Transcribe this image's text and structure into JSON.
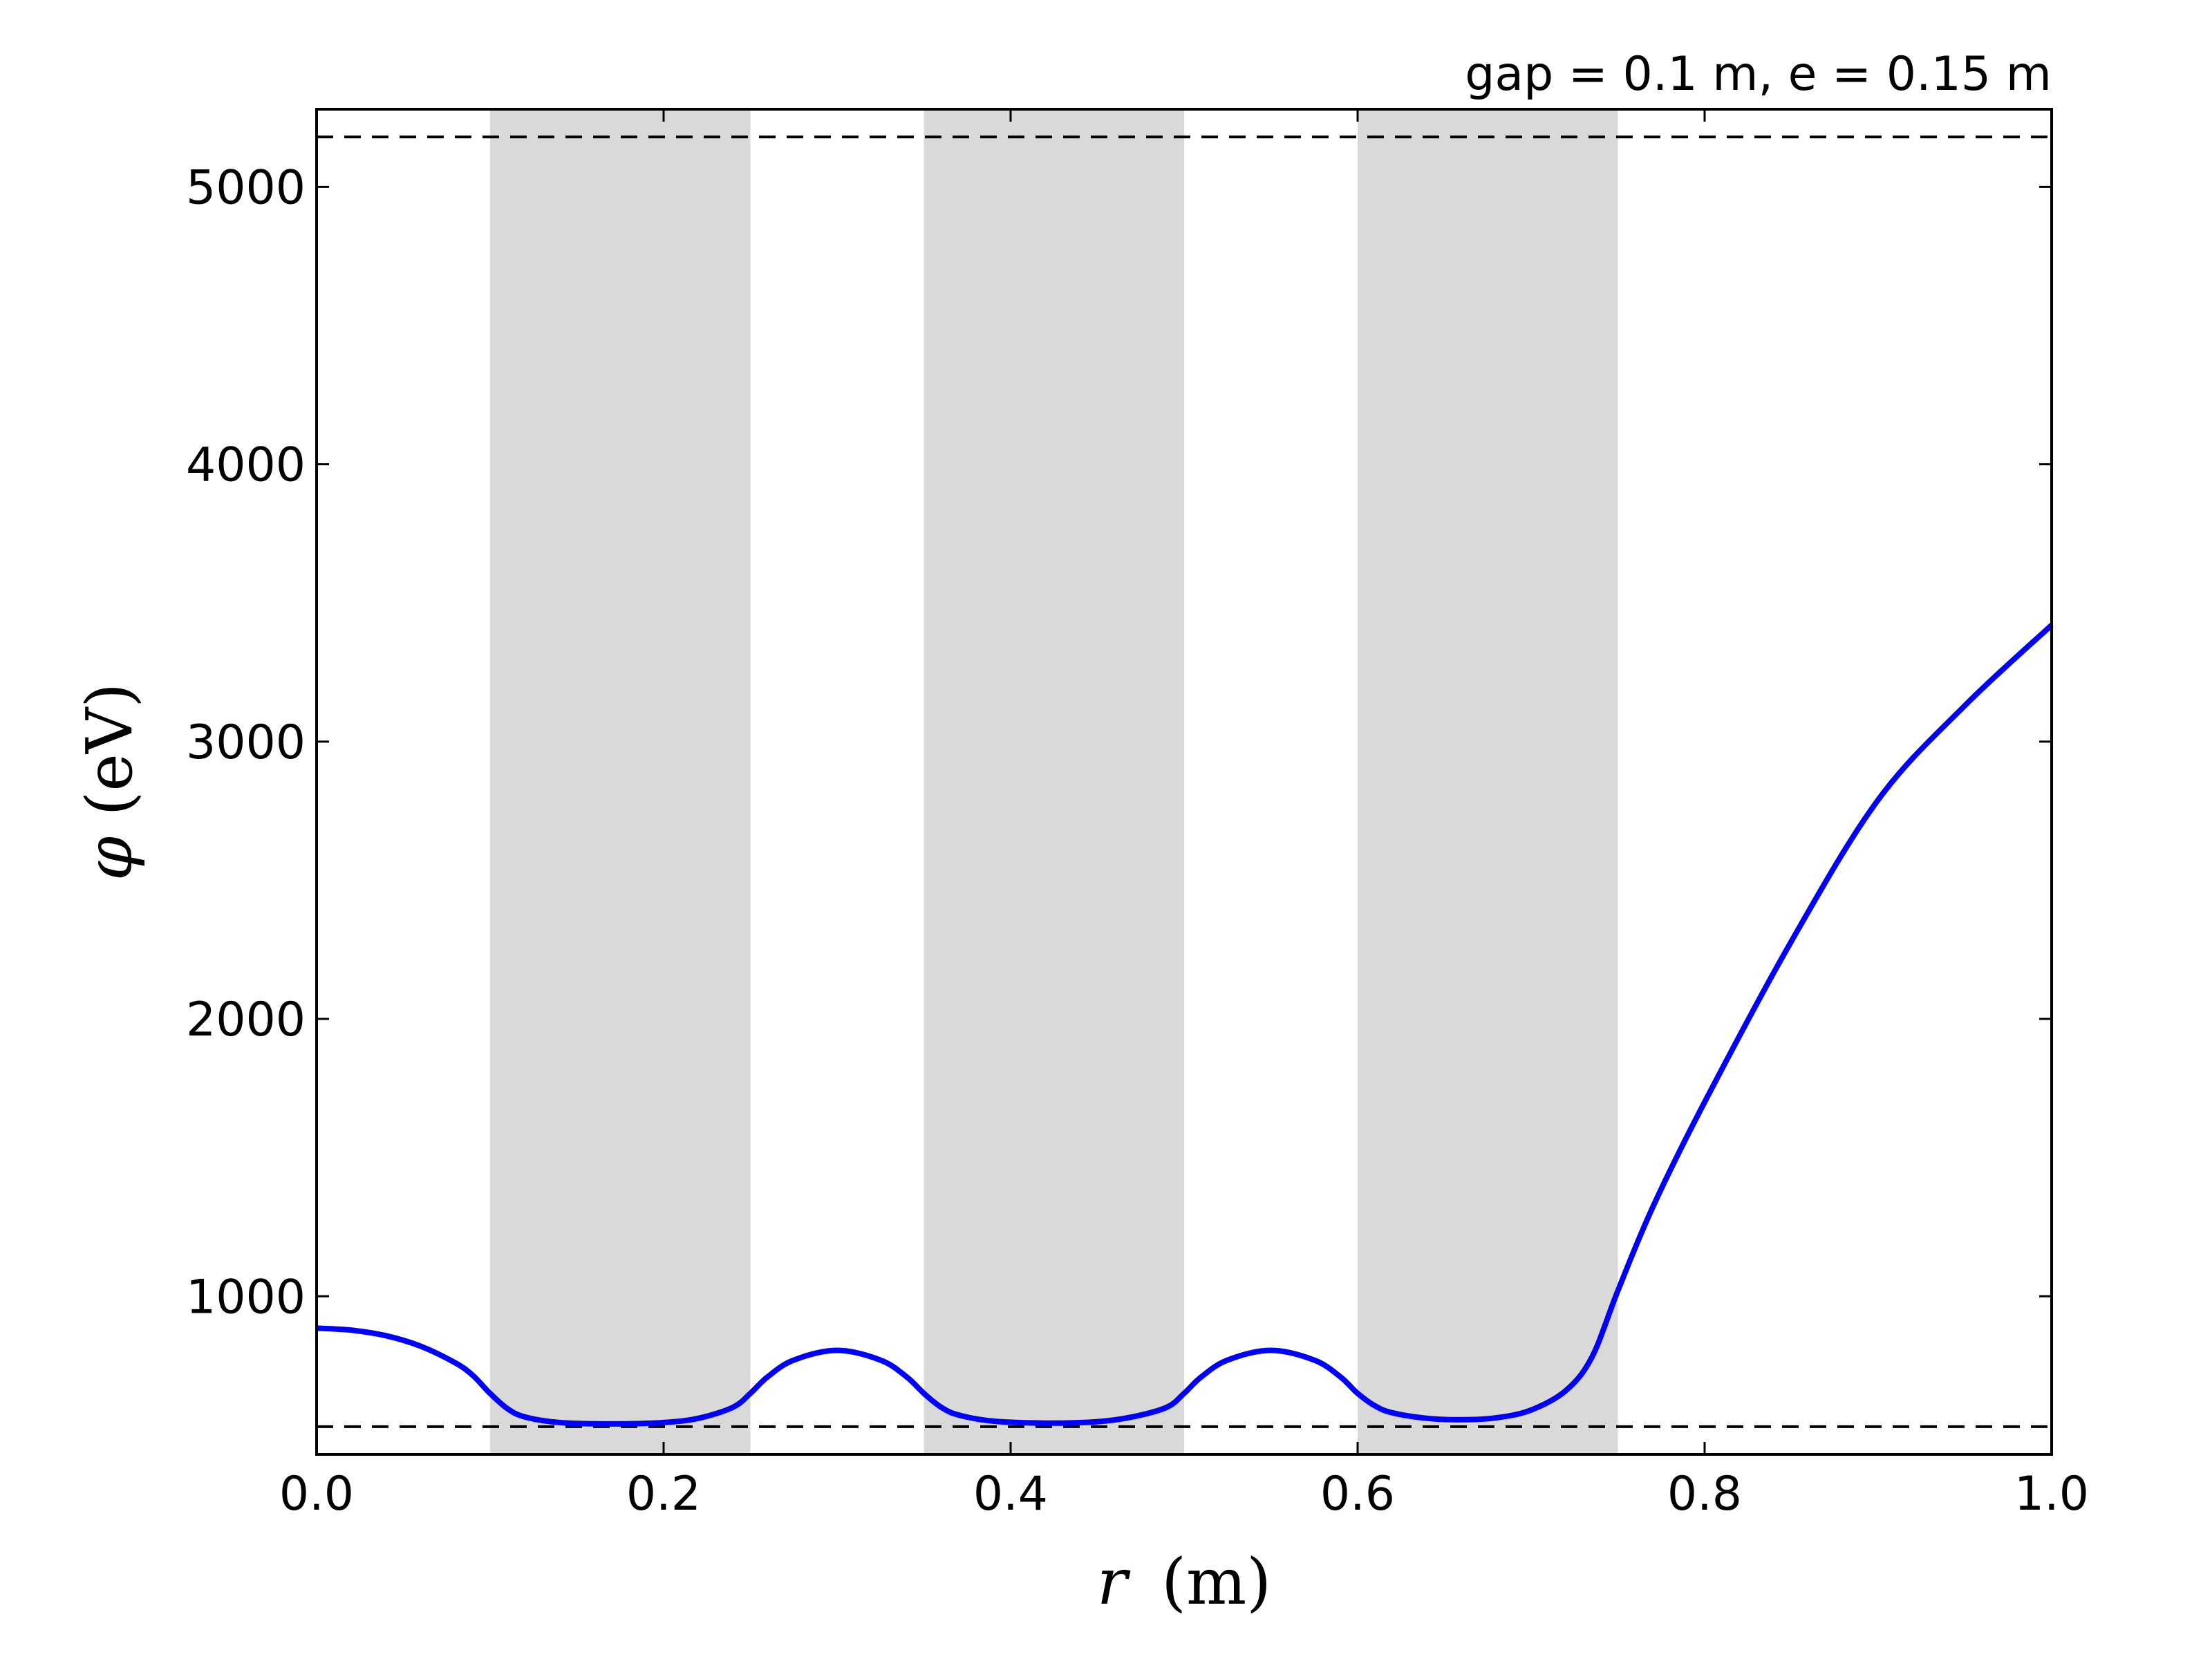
{
  "chart_data": {
    "type": "line",
    "title": "gap = 0.1 m, e = 0.15 m",
    "xlabel": {
      "var": "r",
      "unit": "(m)"
    },
    "ylabel": {
      "var": "φ",
      "unit": "(eV)"
    },
    "xlim": [
      0.0,
      1.0
    ],
    "ylim": [
      430,
      5280
    ],
    "x_ticks": [
      {
        "value": 0.0,
        "label": "0.0"
      },
      {
        "value": 0.2,
        "label": "0.2"
      },
      {
        "value": 0.4,
        "label": "0.4"
      },
      {
        "value": 0.6,
        "label": "0.6"
      },
      {
        "value": 0.8,
        "label": "0.8"
      },
      {
        "value": 1.0,
        "label": "1.0"
      }
    ],
    "y_ticks": [
      {
        "value": 1000,
        "label": "1000"
      },
      {
        "value": 2000,
        "label": "2000"
      },
      {
        "value": 3000,
        "label": "3000"
      },
      {
        "value": 4000,
        "label": "4000"
      },
      {
        "value": 5000,
        "label": "5000"
      }
    ],
    "grid": false,
    "shaded_regions": [
      {
        "x0": 0.1,
        "x1": 0.25,
        "color": "#d9d9d9"
      },
      {
        "x0": 0.35,
        "x1": 0.5,
        "color": "#d9d9d9"
      },
      {
        "x0": 0.6,
        "x1": 0.75,
        "color": "#d9d9d9"
      }
    ],
    "reference_lines": [
      {
        "y": 5180,
        "style": "dashed",
        "color": "#000000"
      },
      {
        "y": 530,
        "style": "dashed",
        "color": "#000000"
      }
    ],
    "series": [
      {
        "color": "#0000ff",
        "points": [
          [
            0.0,
            885
          ],
          [
            0.02,
            878
          ],
          [
            0.04,
            858
          ],
          [
            0.06,
            820
          ],
          [
            0.08,
            760
          ],
          [
            0.09,
            715
          ],
          [
            0.1,
            650
          ],
          [
            0.11,
            595
          ],
          [
            0.12,
            565
          ],
          [
            0.14,
            545
          ],
          [
            0.17,
            540
          ],
          [
            0.2,
            545
          ],
          [
            0.22,
            560
          ],
          [
            0.24,
            600
          ],
          [
            0.25,
            650
          ],
          [
            0.26,
            710
          ],
          [
            0.275,
            770
          ],
          [
            0.3,
            805
          ],
          [
            0.325,
            770
          ],
          [
            0.34,
            710
          ],
          [
            0.35,
            650
          ],
          [
            0.36,
            600
          ],
          [
            0.37,
            572
          ],
          [
            0.39,
            550
          ],
          [
            0.42,
            543
          ],
          [
            0.45,
            548
          ],
          [
            0.47,
            565
          ],
          [
            0.49,
            600
          ],
          [
            0.5,
            650
          ],
          [
            0.51,
            710
          ],
          [
            0.525,
            770
          ],
          [
            0.55,
            805
          ],
          [
            0.575,
            770
          ],
          [
            0.59,
            710
          ],
          [
            0.6,
            650
          ],
          [
            0.61,
            605
          ],
          [
            0.62,
            580
          ],
          [
            0.64,
            560
          ],
          [
            0.66,
            555
          ],
          [
            0.68,
            562
          ],
          [
            0.7,
            590
          ],
          [
            0.72,
            660
          ],
          [
            0.735,
            780
          ],
          [
            0.75,
            1020
          ],
          [
            0.77,
            1320
          ],
          [
            0.8,
            1700
          ],
          [
            0.85,
            2280
          ],
          [
            0.9,
            2790
          ],
          [
            0.95,
            3130
          ],
          [
            1.0,
            3420
          ]
        ]
      }
    ]
  }
}
